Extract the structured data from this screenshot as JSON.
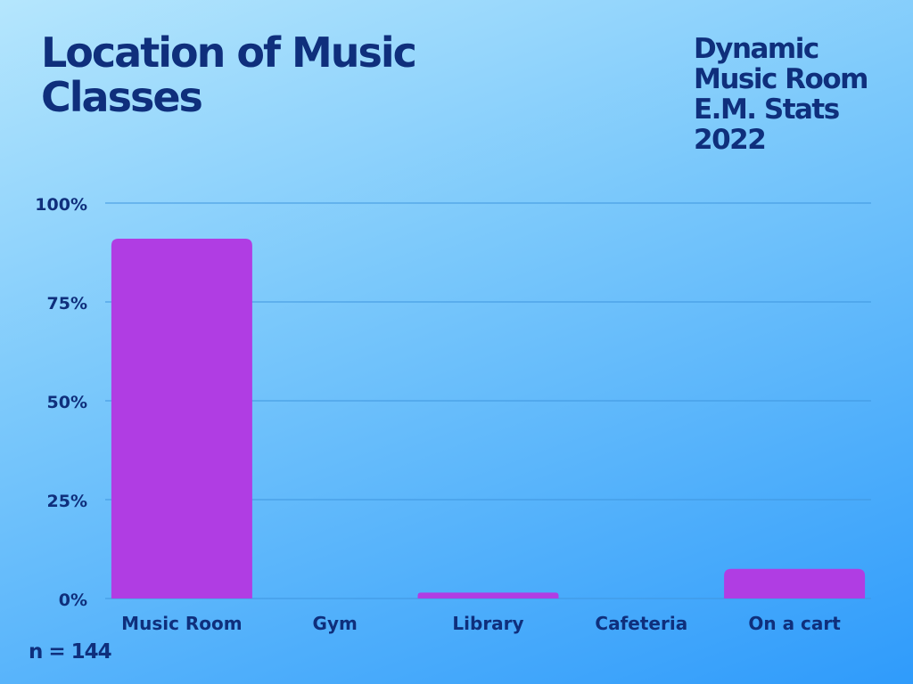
{
  "header": {
    "title": "Location of Music Classes",
    "corner_lines": [
      "Dynamic",
      "Music Room",
      "E.M. Stats",
      "2022"
    ]
  },
  "footnote": "n = 144",
  "colors": {
    "bar": "#b03de3",
    "text": "#0f2f7c",
    "grid": "#3f96df"
  },
  "chart_data": {
    "type": "bar",
    "title": "Location of Music Classes",
    "categories": [
      "Music Room",
      "Gym",
      "Library",
      "Cafeteria",
      "On a cart"
    ],
    "values": [
      91,
      0,
      1.5,
      0,
      7.5
    ],
    "ylim": [
      0,
      100
    ],
    "yticks": [
      0,
      25,
      50,
      75,
      100
    ],
    "ytick_labels": [
      "0%",
      "25%",
      "50%",
      "75%",
      "100%"
    ],
    "grid": true,
    "legend": "none"
  }
}
